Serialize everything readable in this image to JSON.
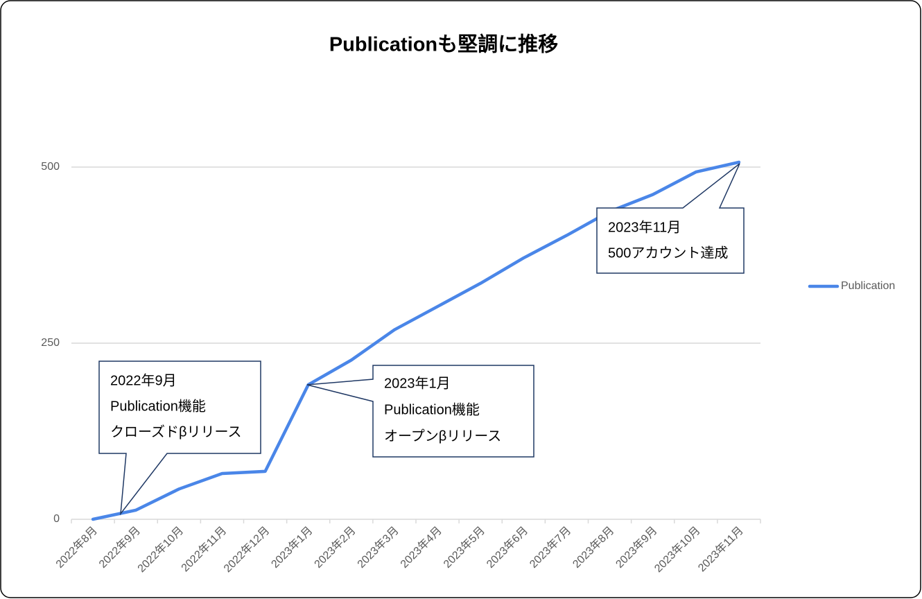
{
  "chart_data": {
    "type": "line",
    "title": "Publicationも堅調に推移",
    "categories": [
      "2022年8月",
      "2022年9月",
      "2022年10月",
      "2022年11月",
      "2022年12月",
      "2023年1月",
      "2023年2月",
      "2023年3月",
      "2023年4月",
      "2023年5月",
      "2023年6月",
      "2023年7月",
      "2023年8月",
      "2023年9月",
      "2023年10月",
      "2023年11月"
    ],
    "series": [
      {
        "name": "Publication",
        "color": "#4a86e8",
        "values": [
          0,
          13,
          43,
          65,
          68,
          191,
          226,
          269,
          302,
          335,
          371,
          403,
          437,
          461,
          493,
          507
        ]
      }
    ],
    "ylim": [
      0,
      600
    ],
    "yticks": [
      0,
      250,
      500
    ],
    "grid": true,
    "legend": "right",
    "annotations": [
      [
        "2022年9月",
        "Publication機能",
        "クローズドβリリース"
      ],
      [
        "2023年1月",
        "Publication機能",
        "オープンβリリース"
      ],
      [
        "2023年11月",
        "500アカウント達成"
      ]
    ]
  }
}
